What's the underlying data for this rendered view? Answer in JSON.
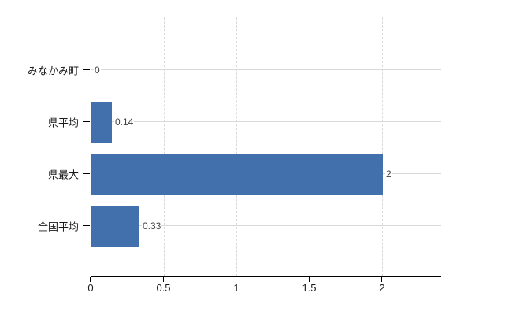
{
  "chart_data": {
    "type": "bar",
    "orientation": "horizontal",
    "title": "",
    "xlabel": "",
    "ylabel": "",
    "categories": [
      "みなかみ町",
      "県平均",
      "県最大",
      "全国平均"
    ],
    "values": [
      0,
      0.14,
      2,
      0.33
    ],
    "value_labels": [
      "0",
      "0.14",
      "2",
      "0.33"
    ],
    "x_ticks": [
      0,
      0.5,
      1,
      1.5,
      2
    ],
    "x_tick_labels": [
      "0",
      "0.5",
      "1",
      "1.5",
      "2"
    ],
    "xlim": [
      0,
      2.4
    ],
    "grid": true,
    "legend": "none",
    "bar_color": "#4170ad",
    "grid_color": "#d9d9d9",
    "axis_color": "#000000",
    "value_label_color": "#404040",
    "background_color": "#ffffff"
  }
}
